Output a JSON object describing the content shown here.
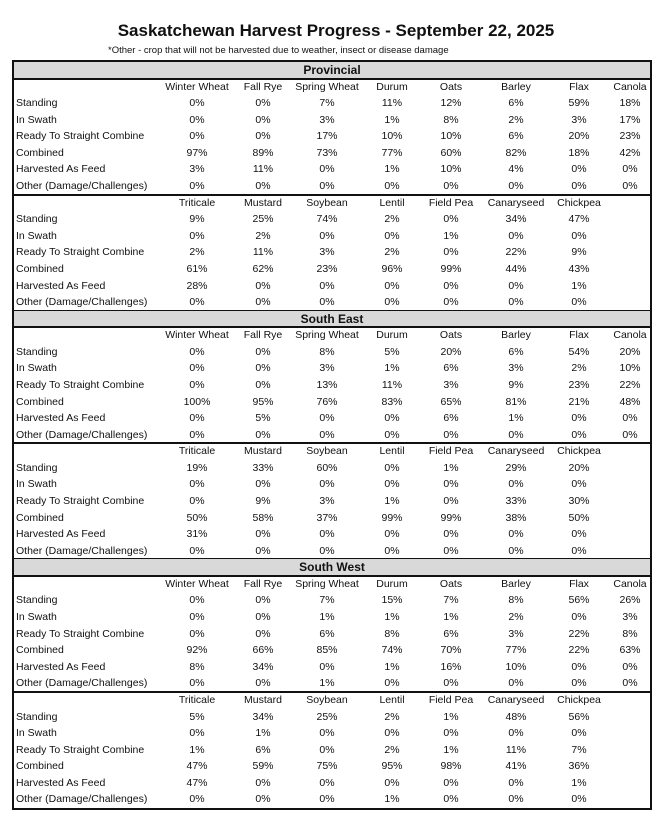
{
  "header": {
    "title": "Saskatchewan Harvest Progress - September 22, 2025",
    "note": "*Other - crop that will not be harvested due to weather, insect or disease damage"
  },
  "sections": [
    {
      "name": "Provincial",
      "groups": [
        {
          "crops": [
            "Winter Wheat",
            "Fall Rye",
            "Spring Wheat",
            "Durum",
            "Oats",
            "Barley",
            "Flax",
            "Canola"
          ],
          "rows": [
            {
              "label": "Standing",
              "values": [
                "0%",
                "0%",
                "7%",
                "11%",
                "12%",
                "6%",
                "59%",
                "18%"
              ]
            },
            {
              "label": "In Swath",
              "values": [
                "0%",
                "0%",
                "3%",
                "1%",
                "8%",
                "2%",
                "3%",
                "17%"
              ]
            },
            {
              "label": "Ready To Straight Combine",
              "values": [
                "0%",
                "0%",
                "17%",
                "10%",
                "10%",
                "6%",
                "20%",
                "23%"
              ]
            },
            {
              "label": "Combined",
              "values": [
                "97%",
                "89%",
                "73%",
                "77%",
                "60%",
                "82%",
                "18%",
                "42%"
              ]
            },
            {
              "label": "Harvested As Feed",
              "values": [
                "3%",
                "11%",
                "0%",
                "1%",
                "10%",
                "4%",
                "0%",
                "0%"
              ]
            },
            {
              "label": "Other (Damage/Challenges)",
              "values": [
                "0%",
                "0%",
                "0%",
                "0%",
                "0%",
                "0%",
                "0%",
                "0%"
              ]
            }
          ]
        },
        {
          "crops": [
            "Triticale",
            "Mustard",
            "Soybean",
            "Lentil",
            "Field Pea",
            "Canaryseed",
            "Chickpea"
          ],
          "rows": [
            {
              "label": "Standing",
              "values": [
                "9%",
                "25%",
                "74%",
                "2%",
                "0%",
                "34%",
                "47%"
              ]
            },
            {
              "label": "In Swath",
              "values": [
                "0%",
                "2%",
                "0%",
                "0%",
                "1%",
                "0%",
                "0%"
              ]
            },
            {
              "label": "Ready To Straight Combine",
              "values": [
                "2%",
                "11%",
                "3%",
                "2%",
                "0%",
                "22%",
                "9%"
              ]
            },
            {
              "label": "Combined",
              "values": [
                "61%",
                "62%",
                "23%",
                "96%",
                "99%",
                "44%",
                "43%"
              ]
            },
            {
              "label": "Harvested As Feed",
              "values": [
                "28%",
                "0%",
                "0%",
                "0%",
                "0%",
                "0%",
                "1%"
              ]
            },
            {
              "label": "Other (Damage/Challenges)",
              "values": [
                "0%",
                "0%",
                "0%",
                "0%",
                "0%",
                "0%",
                "0%"
              ]
            }
          ]
        }
      ]
    },
    {
      "name": "South East",
      "groups": [
        {
          "crops": [
            "Winter Wheat",
            "Fall Rye",
            "Spring Wheat",
            "Durum",
            "Oats",
            "Barley",
            "Flax",
            "Canola"
          ],
          "rows": [
            {
              "label": "Standing",
              "values": [
                "0%",
                "0%",
                "8%",
                "5%",
                "20%",
                "6%",
                "54%",
                "20%"
              ]
            },
            {
              "label": "In Swath",
              "values": [
                "0%",
                "0%",
                "3%",
                "1%",
                "6%",
                "3%",
                "2%",
                "10%"
              ]
            },
            {
              "label": "Ready To Straight Combine",
              "values": [
                "0%",
                "0%",
                "13%",
                "11%",
                "3%",
                "9%",
                "23%",
                "22%"
              ]
            },
            {
              "label": "Combined",
              "values": [
                "100%",
                "95%",
                "76%",
                "83%",
                "65%",
                "81%",
                "21%",
                "48%"
              ]
            },
            {
              "label": "Harvested As Feed",
              "values": [
                "0%",
                "5%",
                "0%",
                "0%",
                "6%",
                "1%",
                "0%",
                "0%"
              ]
            },
            {
              "label": "Other (Damage/Challenges)",
              "values": [
                "0%",
                "0%",
                "0%",
                "0%",
                "0%",
                "0%",
                "0%",
                "0%"
              ]
            }
          ]
        },
        {
          "crops": [
            "Triticale",
            "Mustard",
            "Soybean",
            "Lentil",
            "Field Pea",
            "Canaryseed",
            "Chickpea"
          ],
          "rows": [
            {
              "label": "Standing",
              "values": [
                "19%",
                "33%",
                "60%",
                "0%",
                "1%",
                "29%",
                "20%"
              ]
            },
            {
              "label": "In Swath",
              "values": [
                "0%",
                "0%",
                "0%",
                "0%",
                "0%",
                "0%",
                "0%"
              ]
            },
            {
              "label": "Ready To Straight Combine",
              "values": [
                "0%",
                "9%",
                "3%",
                "1%",
                "0%",
                "33%",
                "30%"
              ]
            },
            {
              "label": "Combined",
              "values": [
                "50%",
                "58%",
                "37%",
                "99%",
                "99%",
                "38%",
                "50%"
              ]
            },
            {
              "label": "Harvested As Feed",
              "values": [
                "31%",
                "0%",
                "0%",
                "0%",
                "0%",
                "0%",
                "0%"
              ]
            },
            {
              "label": "Other (Damage/Challenges)",
              "values": [
                "0%",
                "0%",
                "0%",
                "0%",
                "0%",
                "0%",
                "0%"
              ]
            }
          ]
        }
      ]
    },
    {
      "name": "South West",
      "groups": [
        {
          "crops": [
            "Winter Wheat",
            "Fall Rye",
            "Spring Wheat",
            "Durum",
            "Oats",
            "Barley",
            "Flax",
            "Canola"
          ],
          "rows": [
            {
              "label": "Standing",
              "values": [
                "0%",
                "0%",
                "7%",
                "15%",
                "7%",
                "8%",
                "56%",
                "26%"
              ]
            },
            {
              "label": "In Swath",
              "values": [
                "0%",
                "0%",
                "1%",
                "1%",
                "1%",
                "2%",
                "0%",
                "3%"
              ]
            },
            {
              "label": "Ready To Straight Combine",
              "values": [
                "0%",
                "0%",
                "6%",
                "8%",
                "6%",
                "3%",
                "22%",
                "8%"
              ]
            },
            {
              "label": "Combined",
              "values": [
                "92%",
                "66%",
                "85%",
                "74%",
                "70%",
                "77%",
                "22%",
                "63%"
              ]
            },
            {
              "label": "Harvested As Feed",
              "values": [
                "8%",
                "34%",
                "0%",
                "1%",
                "16%",
                "10%",
                "0%",
                "0%"
              ]
            },
            {
              "label": "Other (Damage/Challenges)",
              "values": [
                "0%",
                "0%",
                "1%",
                "0%",
                "0%",
                "0%",
                "0%",
                "0%"
              ]
            }
          ]
        },
        {
          "crops": [
            "Triticale",
            "Mustard",
            "Soybean",
            "Lentil",
            "Field Pea",
            "Canaryseed",
            "Chickpea"
          ],
          "rows": [
            {
              "label": "Standing",
              "values": [
                "5%",
                "34%",
                "25%",
                "2%",
                "1%",
                "48%",
                "56%"
              ]
            },
            {
              "label": "In Swath",
              "values": [
                "0%",
                "1%",
                "0%",
                "0%",
                "0%",
                "0%",
                "0%"
              ]
            },
            {
              "label": "Ready To Straight Combine",
              "values": [
                "1%",
                "6%",
                "0%",
                "2%",
                "1%",
                "11%",
                "7%"
              ]
            },
            {
              "label": "Combined",
              "values": [
                "47%",
                "59%",
                "75%",
                "95%",
                "98%",
                "41%",
                "36%"
              ]
            },
            {
              "label": "Harvested As Feed",
              "values": [
                "47%",
                "0%",
                "0%",
                "0%",
                "0%",
                "0%",
                "1%"
              ]
            },
            {
              "label": "Other (Damage/Challenges)",
              "values": [
                "0%",
                "0%",
                "0%",
                "1%",
                "0%",
                "0%",
                "0%"
              ]
            }
          ]
        }
      ]
    }
  ]
}
